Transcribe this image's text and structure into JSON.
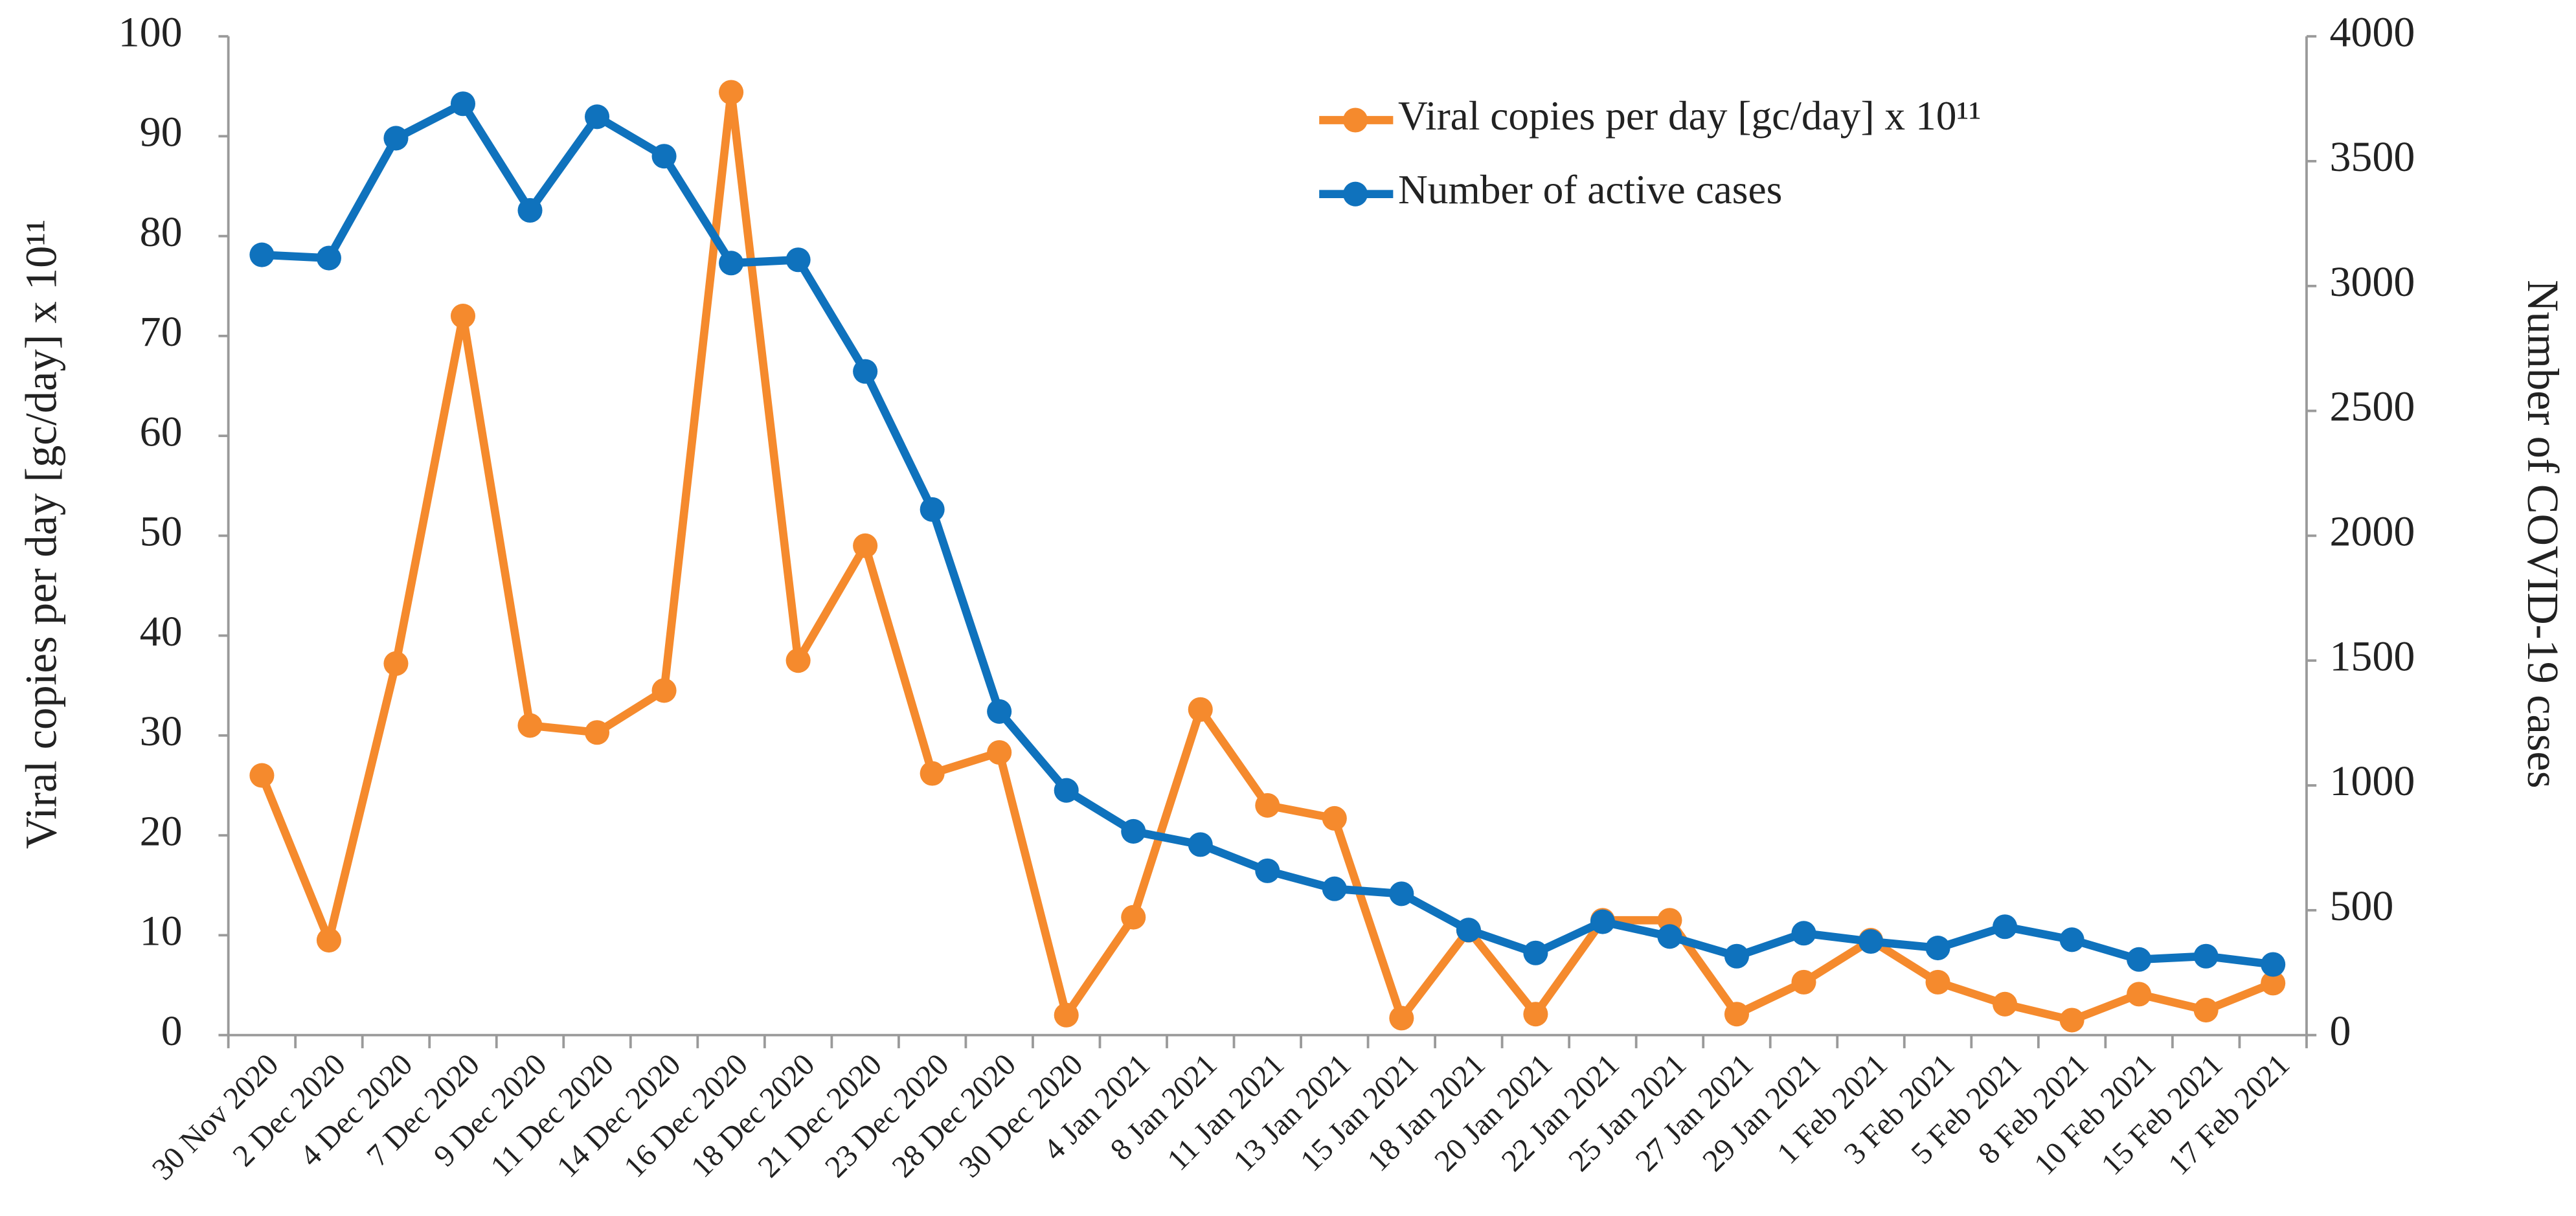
{
  "chart_data": {
    "type": "line",
    "y_label": "Viral copies per day [gc/day] x 10¹¹",
    "y2_label": "Number of COVID-19 cases",
    "categories": [
      "30 Nov 2020",
      "2 Dec 2020",
      "4 Dec 2020",
      "7 Dec 2020",
      "9 Dec 2020",
      "11 Dec 2020",
      "14 Dec 2020",
      "16 Dec 2020",
      "18 Dec 2020",
      "21 Dec 2020",
      "23 Dec 2020",
      "28 Dec 2020",
      "30 Dec 2020",
      "4 Jan 2021",
      "8 Jan 2021",
      "11 Jan 2021",
      "13 Jan 2021",
      "15 Jan 2021",
      "18 Jan 2021",
      "20 Jan 2021",
      "22 Jan 2021",
      "25 Jan 2021",
      "27 Jan 2021",
      "29 Jan 2021",
      "1 Feb 2021",
      "3 Feb 2021",
      "5 Feb 2021",
      "8 Feb 2021",
      "10 Feb 2021",
      "15 Feb 2021",
      "17 Feb 2021"
    ],
    "series": [
      {
        "name": "Viral copies per day [gc/day] x 10¹¹",
        "color": "#f58a2d",
        "axis": "y",
        "values": [
          26,
          9.5,
          37.2,
          72,
          31,
          30.3,
          34.5,
          94.4,
          37.5,
          49,
          26.2,
          28.3,
          2,
          11.8,
          32.6,
          23,
          21.7,
          1.7,
          10.5,
          2.1,
          11.5,
          11.5,
          2.1,
          5.3,
          9.5,
          5.3,
          3.1,
          1.5,
          4.1,
          2.5,
          5.2
        ]
      },
      {
        "name": "Number of active cases",
        "color": "#0f72bd",
        "axis": "y2",
        "values": [
          3125,
          3112,
          3592,
          3730,
          3303,
          3678,
          3520,
          3092,
          3105,
          2658,
          2105,
          1296,
          980,
          816,
          763,
          658,
          586,
          566,
          421,
          329,
          454,
          395,
          316,
          408,
          375,
          349,
          434,
          382,
          303,
          316,
          283
        ]
      }
    ],
    "ylim": [
      0,
      100
    ],
    "yticks": [
      0,
      10,
      20,
      30,
      40,
      50,
      60,
      70,
      80,
      90,
      100
    ],
    "y2lim": [
      0,
      4000
    ],
    "y2ticks": [
      0,
      500,
      1000,
      1500,
      2000,
      2500,
      3000,
      3500,
      4000
    ],
    "grid": false,
    "legend": "top-right"
  }
}
